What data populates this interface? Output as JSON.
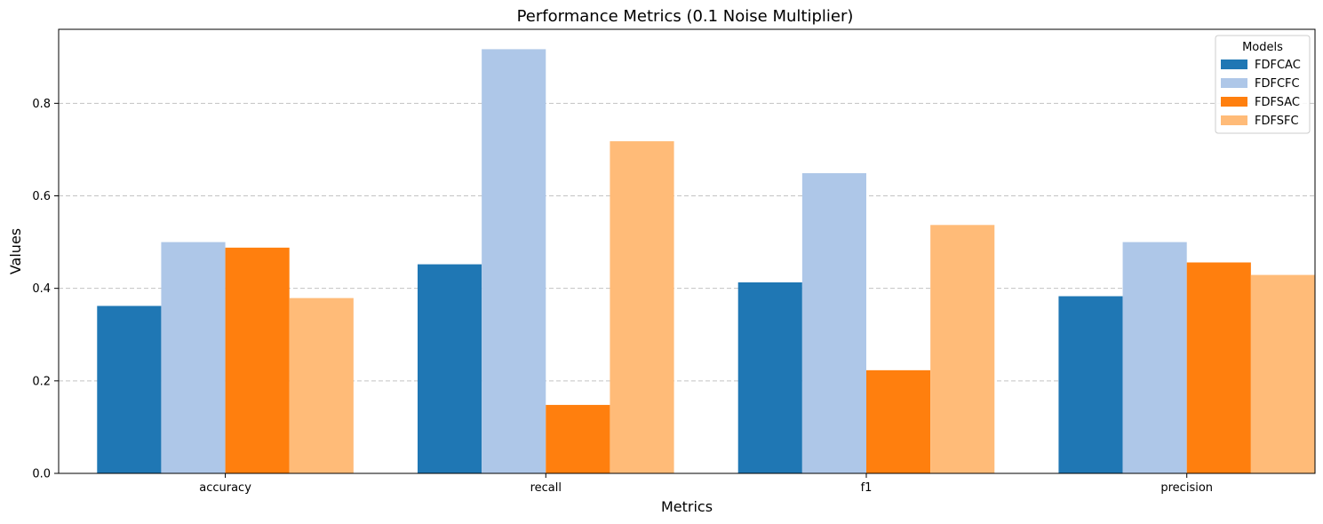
{
  "chart_data": {
    "type": "bar",
    "title": "Performance Metrics (0.1 Noise Multiplier)",
    "xlabel": "Metrics",
    "ylabel": "Values",
    "categories": [
      "accuracy",
      "recall",
      "f1",
      "precision"
    ],
    "ylim": [
      0,
      0.96
    ],
    "yticks": [
      0.0,
      0.2,
      0.4,
      0.6,
      0.8
    ],
    "ytick_labels": [
      "0.0",
      "0.2",
      "0.4",
      "0.6",
      "0.8"
    ],
    "grid": "y-dashed",
    "legend": {
      "title": "Models",
      "placement": "top-right"
    },
    "series": [
      {
        "name": "FDFCAC",
        "color": "#1f77b4",
        "values": [
          0.362,
          0.452,
          0.413,
          0.383
        ]
      },
      {
        "name": "FDFCFC",
        "color": "#aec7e8",
        "values": [
          0.5,
          0.917,
          0.649,
          0.5
        ]
      },
      {
        "name": "FDFSAC",
        "color": "#ff7f0e",
        "values": [
          0.488,
          0.148,
          0.223,
          0.456
        ]
      },
      {
        "name": "FDFSFC",
        "color": "#ffbb78",
        "values": [
          0.379,
          0.718,
          0.537,
          0.429
        ]
      }
    ]
  }
}
